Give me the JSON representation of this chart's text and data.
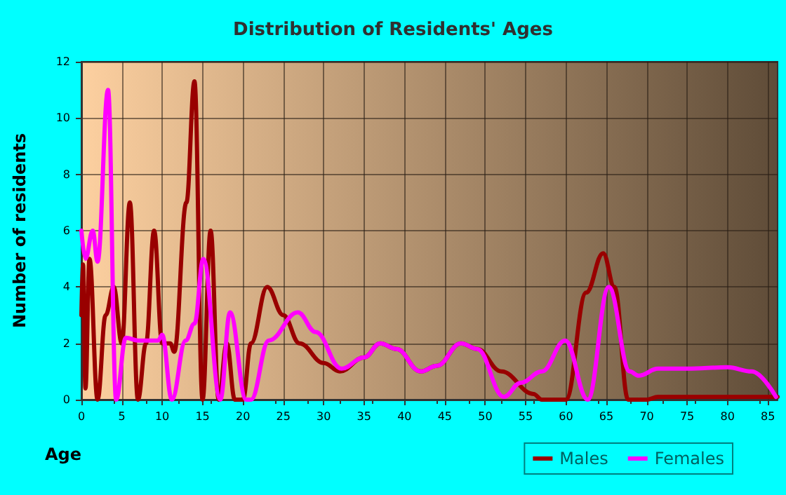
{
  "chart_data": {
    "type": "line",
    "title": "Distribution of Residents' Ages",
    "xlabel": "Age",
    "ylabel": "Number of residents",
    "xlim": [
      0,
      86.2
    ],
    "xticks": [
      0,
      5,
      10,
      15,
      20,
      25,
      30,
      35,
      40,
      45,
      50,
      55,
      60,
      65,
      70,
      75,
      80,
      85
    ],
    "ylim": [
      0,
      12
    ],
    "yticks": [
      0,
      2,
      4,
      6,
      8,
      10,
      12
    ],
    "grid": true,
    "legend": "bottom right",
    "marker": "none",
    "line_style": "solid",
    "series": [
      {
        "name": "Males",
        "color": "#990000",
        "x": [
          0,
          0.2,
          0.5,
          1,
          2,
          3,
          4,
          5,
          6,
          7,
          8,
          9,
          10,
          11,
          11.5,
          13,
          14,
          15,
          16,
          17,
          18,
          19,
          20,
          21,
          23,
          25,
          27,
          30,
          32,
          35,
          37,
          39,
          42,
          44,
          47,
          49,
          52,
          56,
          57,
          60,
          62.5,
          64.6,
          66,
          67.7,
          70,
          71.4,
          75,
          80,
          86.2
        ],
        "values": [
          3,
          4.8,
          0.4,
          5,
          0,
          3,
          4,
          2,
          7,
          0,
          2,
          6,
          2,
          2,
          1.7,
          7,
          11.3,
          0,
          6,
          0,
          2,
          0,
          0,
          2,
          4,
          3,
          2,
          1.3,
          1,
          1.5,
          2,
          1.8,
          1,
          1.2,
          2,
          1.8,
          1,
          0.2,
          0,
          0,
          3.8,
          5.2,
          4,
          0,
          0,
          0.1,
          0.1,
          0.1,
          0.1
        ]
      },
      {
        "name": "Females",
        "color": "#ff00ff",
        "x": [
          0,
          0.5,
          1.4,
          2,
          3.3,
          4.3,
          5.5,
          7,
          9.5,
          10,
          11.2,
          12.9,
          14,
          15.1,
          17.2,
          18.4,
          20.4,
          21,
          23.2,
          26.8,
          29,
          32.2,
          35,
          37,
          39,
          42,
          44,
          47,
          49,
          52.3,
          54.4,
          57,
          59.9,
          62.7,
          65.3,
          67.9,
          69,
          71.4,
          75,
          80,
          83,
          86
        ],
        "values": [
          6,
          5,
          6,
          4.9,
          11,
          0,
          2.2,
          2.1,
          2.1,
          2.3,
          0,
          2.1,
          2.7,
          5,
          0,
          3.1,
          0,
          0,
          2.1,
          3.1,
          2.4,
          1.1,
          1.5,
          2,
          1.8,
          1,
          1.2,
          2,
          1.8,
          0.1,
          0.6,
          1,
          2.1,
          0,
          4,
          1,
          0.85,
          1.1,
          1.1,
          1.15,
          1,
          0.1
        ]
      }
    ]
  }
}
